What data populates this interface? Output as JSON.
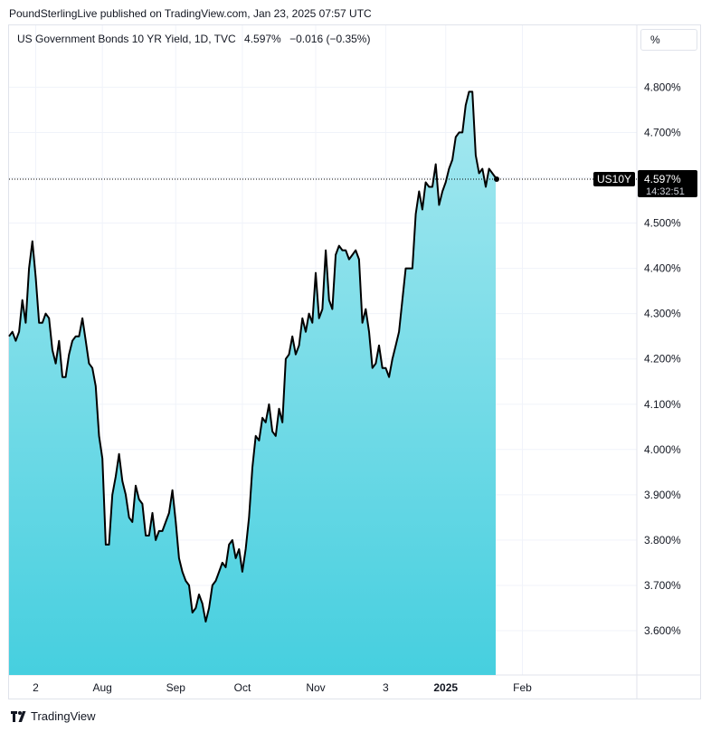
{
  "publisher_line": "PoundSterlingLive published on TradingView.com, Jan 23, 2025 07:57 UTC",
  "legend": {
    "symbol": "US Government Bonds 10 YR Yield, 1D, TVC",
    "last": "4.597%",
    "change": "−0.016 (−0.35%)"
  },
  "unit_button": "%",
  "price_tag": {
    "label": "US10Y",
    "value": "4.597%",
    "countdown": "14:32:51"
  },
  "footer": {
    "logo_text": "TradingView"
  },
  "colors": {
    "line": "#000000",
    "fill_top": "#a6e8f0",
    "fill_bottom": "#46cfdf",
    "grid": "#f0f3fa",
    "label_bg": "#000000"
  },
  "chart_data": {
    "type": "area",
    "title": "US Government Bonds 10 YR Yield, 1D, TVC",
    "ylabel": "",
    "xlabel": "",
    "ylim": [
      3.5,
      4.85
    ],
    "yticks": [
      "4.800%",
      "4.700%",
      "4.600%",
      "4.500%",
      "4.400%",
      "4.300%",
      "4.200%",
      "4.100%",
      "4.000%",
      "3.900%",
      "3.800%",
      "3.700%",
      "3.600%"
    ],
    "ytick_values": [
      4.8,
      4.7,
      4.6,
      4.5,
      4.4,
      4.3,
      4.2,
      4.1,
      4.0,
      3.9,
      3.8,
      3.7,
      3.6
    ],
    "xticks": [
      {
        "label": "2",
        "i": 8
      },
      {
        "label": "Aug",
        "i": 28
      },
      {
        "label": "Sep",
        "i": 50
      },
      {
        "label": "Oct",
        "i": 70
      },
      {
        "label": "Nov",
        "i": 92
      },
      {
        "label": "3",
        "i": 113
      },
      {
        "label": "2025",
        "i": 131
      },
      {
        "label": "Feb",
        "i": 154
      }
    ],
    "total_bars": 166,
    "grid": true,
    "last_value": 4.597,
    "values": [
      4.25,
      4.26,
      4.24,
      4.26,
      4.33,
      4.28,
      4.4,
      4.46,
      4.38,
      4.28,
      4.28,
      4.3,
      4.29,
      4.22,
      4.19,
      4.24,
      4.16,
      4.16,
      4.21,
      4.24,
      4.25,
      4.25,
      4.29,
      4.24,
      4.19,
      4.18,
      4.14,
      4.03,
      3.98,
      3.79,
      3.79,
      3.9,
      3.94,
      3.99,
      3.93,
      3.9,
      3.85,
      3.84,
      3.92,
      3.89,
      3.88,
      3.81,
      3.81,
      3.86,
      3.8,
      3.82,
      3.82,
      3.84,
      3.86,
      3.91,
      3.84,
      3.76,
      3.73,
      3.71,
      3.7,
      3.64,
      3.65,
      3.68,
      3.66,
      3.62,
      3.65,
      3.7,
      3.71,
      3.73,
      3.75,
      3.74,
      3.79,
      3.8,
      3.76,
      3.78,
      3.73,
      3.78,
      3.85,
      3.96,
      4.03,
      4.02,
      4.07,
      4.06,
      4.1,
      4.04,
      4.03,
      4.09,
      4.06,
      4.2,
      4.21,
      4.25,
      4.21,
      4.23,
      4.29,
      4.26,
      4.3,
      4.28,
      4.39,
      4.29,
      4.31,
      4.44,
      4.33,
      4.31,
      4.43,
      4.45,
      4.44,
      4.44,
      4.42,
      4.43,
      4.44,
      4.42,
      4.28,
      4.31,
      4.26,
      4.18,
      4.19,
      4.23,
      4.18,
      4.18,
      4.16,
      4.2,
      4.23,
      4.26,
      4.33,
      4.4,
      4.4,
      4.4,
      4.52,
      4.57,
      4.53,
      4.59,
      4.58,
      4.58,
      4.63,
      4.54,
      4.57,
      4.59,
      4.62,
      4.64,
      4.69,
      4.7,
      4.7,
      4.76,
      4.79,
      4.79,
      4.65,
      4.61,
      4.62,
      4.58,
      4.62,
      4.61,
      4.6
    ]
  }
}
